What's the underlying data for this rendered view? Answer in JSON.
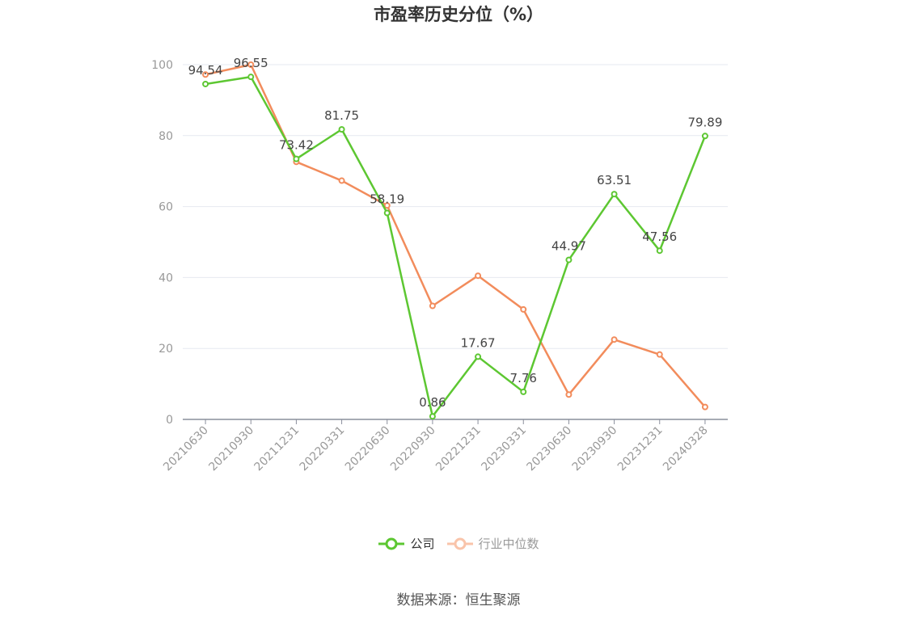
{
  "chart_data": {
    "type": "line",
    "title": "市盈率历史分位（%）",
    "categories": [
      "20210630",
      "20210930",
      "20211231",
      "20220331",
      "20220630",
      "20220930",
      "20221231",
      "20230331",
      "20230630",
      "20230930",
      "20231231",
      "20240328"
    ],
    "series": [
      {
        "name": "公司",
        "color": "#5dc732",
        "values": [
          94.54,
          96.55,
          73.42,
          81.75,
          58.19,
          0.86,
          17.67,
          7.76,
          44.97,
          63.51,
          47.56,
          79.89
        ],
        "labels": [
          "94.54",
          "96.55",
          "73.42",
          "81.75",
          "58.19",
          "0.86",
          "17.67",
          "7.76",
          "44.97",
          "63.51",
          "47.56",
          "79.89"
        ]
      },
      {
        "name": "行业中位数",
        "color": "#f28c5c",
        "values": [
          97.2,
          100,
          72.6,
          67.3,
          60.3,
          32.0,
          40.5,
          31.0,
          7.0,
          22.5,
          18.3,
          3.5
        ]
      }
    ],
    "ylim": [
      0,
      100
    ],
    "yticks": [
      0,
      20,
      40,
      60,
      80,
      100
    ],
    "grid": true,
    "legend": "bottom-center"
  },
  "source": "数据来源：恒生聚源"
}
